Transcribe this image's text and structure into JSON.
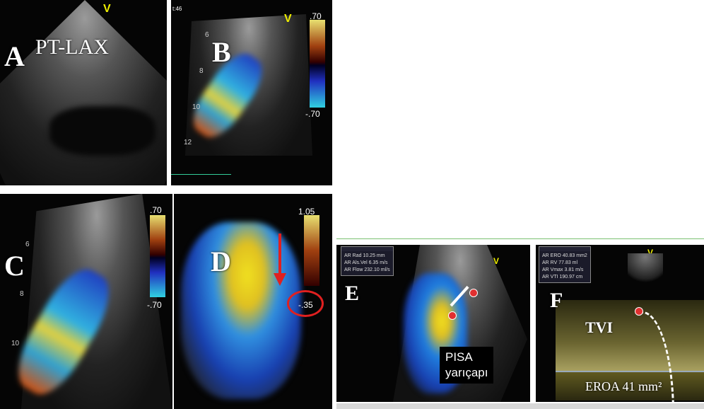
{
  "panels": {
    "A": {
      "letter": "A",
      "label": "PT-LAX",
      "marker": "V"
    },
    "B": {
      "letter": "B",
      "marker": "V",
      "time": "t:46",
      "scale_top": ".70",
      "scale_bottom": "-.70",
      "depths": [
        "6",
        "8",
        "10",
        "12"
      ]
    },
    "C": {
      "letter": "C",
      "scale_top": ".70",
      "scale_bottom": "-.70",
      "depths": [
        "6",
        "8",
        "10"
      ]
    },
    "D": {
      "letter": "D",
      "scale_top": "1.05",
      "baseline_shift": "-.35"
    },
    "E": {
      "letter": "E",
      "marker": "V",
      "caption_line1": "PISA",
      "caption_line2": "yarıçapı",
      "measurements": [
        "AR Rad   10.25 mm",
        "AR Als.Vel  6.35 m/s",
        "AR Flow  232.10 ml/s"
      ]
    },
    "F": {
      "letter": "F",
      "marker": "V",
      "tvi_label": "TVI",
      "eroa_label": "EROA 41 mm²",
      "measurements": [
        "AR ERO  40.83 mm2",
        "AR RV   77.83 ml",
        "AR Vmax   3.81 m/s",
        "AR VTI  190.97 cm"
      ]
    }
  },
  "colors": {
    "arrow": "#e02020",
    "separator": "#7ac070",
    "doppler_yellow": "#d8d060"
  }
}
